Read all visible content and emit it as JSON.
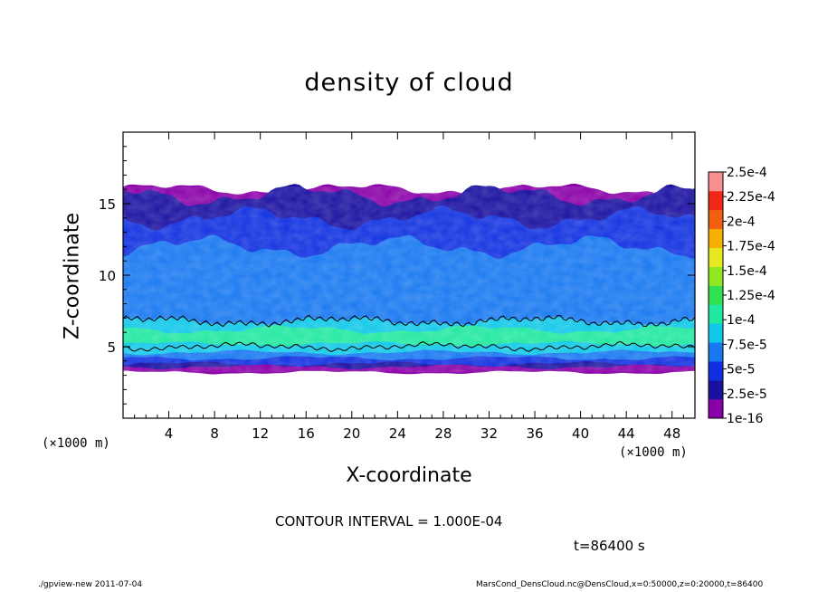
{
  "chart_data": {
    "type": "heatmap",
    "title": "density of cloud",
    "xlabel": "X-coordinate",
    "ylabel": "Z-coordinate",
    "x_unit_label": "(×1000 m)",
    "x_range": [
      0,
      50
    ],
    "y_range": [
      0,
      20
    ],
    "x_ticks": [
      4,
      8,
      12,
      16,
      20,
      24,
      28,
      32,
      36,
      40,
      44,
      48
    ],
    "y_ticks": [
      5,
      10,
      15
    ],
    "cloud_layers": [
      {
        "z_bottom": 3.2,
        "z_top": 16.0,
        "level": "1e-16"
      },
      {
        "z_bottom": 3.6,
        "z_top": 15.6,
        "level": "2.5e-5"
      },
      {
        "z_bottom": 3.8,
        "z_top": 14.0,
        "level": "5e-5"
      },
      {
        "z_bottom": 4.2,
        "z_top": 12.0,
        "level": "7.5e-5"
      },
      {
        "z_bottom": 4.6,
        "z_top": 6.8,
        "level": "1e-4"
      },
      {
        "z_bottom": 5.2,
        "z_top": 6.2,
        "level": "1.25e-4"
      }
    ],
    "colorbar": {
      "labels": [
        "2.5e-4",
        "2.25e-4",
        "2e-4",
        "1.75e-4",
        "1.5e-4",
        "1.25e-4",
        "1e-4",
        "7.5e-5",
        "5e-5",
        "2.5e-5",
        "1e-16"
      ],
      "colors": [
        "#8a00a8",
        "#1a10a0",
        "#1030e0",
        "#1878f0",
        "#10c8e8",
        "#20e8a0",
        "#30e050",
        "#90e820",
        "#e8e820",
        "#f8b000",
        "#f06010",
        "#f02818",
        "#f89090"
      ]
    }
  },
  "contour_interval": "CONTOUR INTERVAL = 1.000E-04",
  "time_label": "t=86400 s",
  "footer_left": "./gpview-new  2011-07-04",
  "footer_right": "MarsCond_DensCloud.nc@DensCloud,x=0:50000,z=0:20000,t=86400"
}
